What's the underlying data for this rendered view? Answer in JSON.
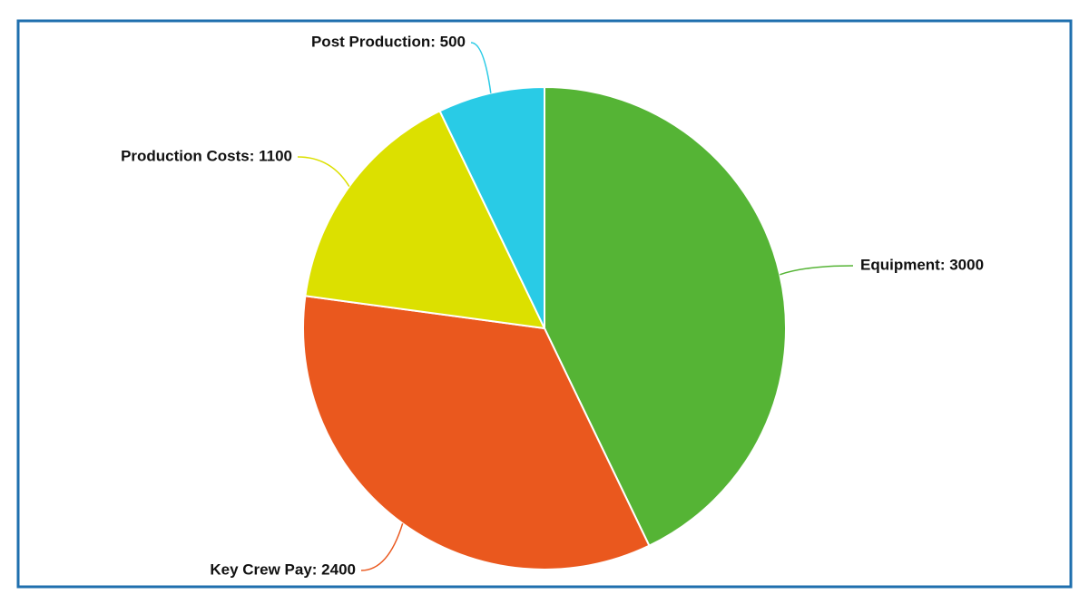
{
  "chart_data": {
    "type": "pie",
    "categories": [
      "Equipment: 3000",
      "Key Crew Pay: 2400",
      "Production Costs: 1100",
      "Post Production: 500"
    ],
    "values": [
      3000,
      2400,
      1100,
      500
    ],
    "colors": [
      "#55b435",
      "#ea581e",
      "#dce000",
      "#29cbe6"
    ]
  }
}
